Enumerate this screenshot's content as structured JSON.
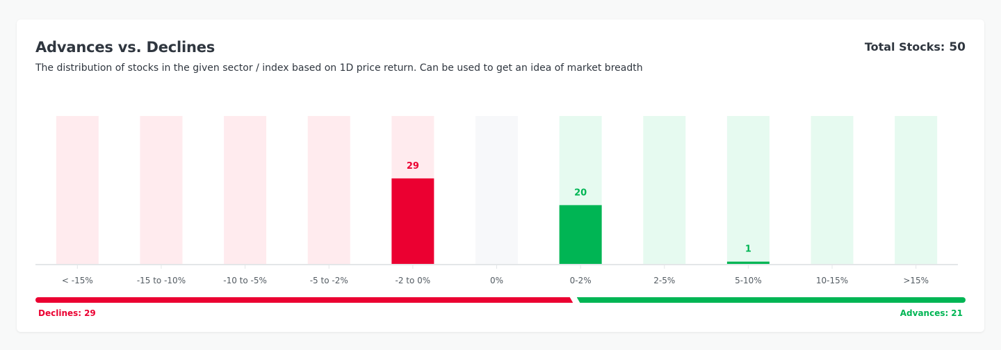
{
  "header": {
    "title": "Advances vs. Declines",
    "subtitle": "The distribution of stocks in the given sector / index based on 1D price return. Can be used to get an idea of market breadth",
    "total_label": "Total Stocks:",
    "total_value": "50"
  },
  "breadth": {
    "declines_label": "Declines:",
    "declines_value": "29",
    "advances_label": "Advances:",
    "advances_value": "21"
  },
  "colors": {
    "decline": "#eb0031",
    "decline_bg": "#ffebee",
    "advance": "#00b554",
    "advance_bg": "#e6faf0",
    "neutral_bg": "#f7f8fa",
    "axis": "#e3e6e8",
    "tick_text": "#535b62"
  },
  "chart_data": {
    "type": "bar",
    "categories": [
      "< -15%",
      "-15 to -10%",
      "-10 to -5%",
      "-5 to -2%",
      "-2 to 0%",
      "0%",
      "0-2%",
      "2-5%",
      "5-10%",
      "10-15%",
      ">15%"
    ],
    "values": [
      0,
      0,
      0,
      0,
      29,
      0,
      20,
      0,
      1,
      0,
      0
    ],
    "bar_kind": [
      "decline",
      "decline",
      "decline",
      "decline",
      "decline",
      "neutral",
      "advance",
      "advance",
      "advance",
      "advance",
      "advance"
    ],
    "data_labels": [
      "",
      "",
      "",
      "",
      "29",
      "",
      "20",
      "",
      "1",
      "",
      ""
    ],
    "title": "Advances vs. Declines",
    "xlabel": "",
    "ylabel": "",
    "ylim": [
      0,
      50
    ],
    "grid": false,
    "legend": "none"
  }
}
